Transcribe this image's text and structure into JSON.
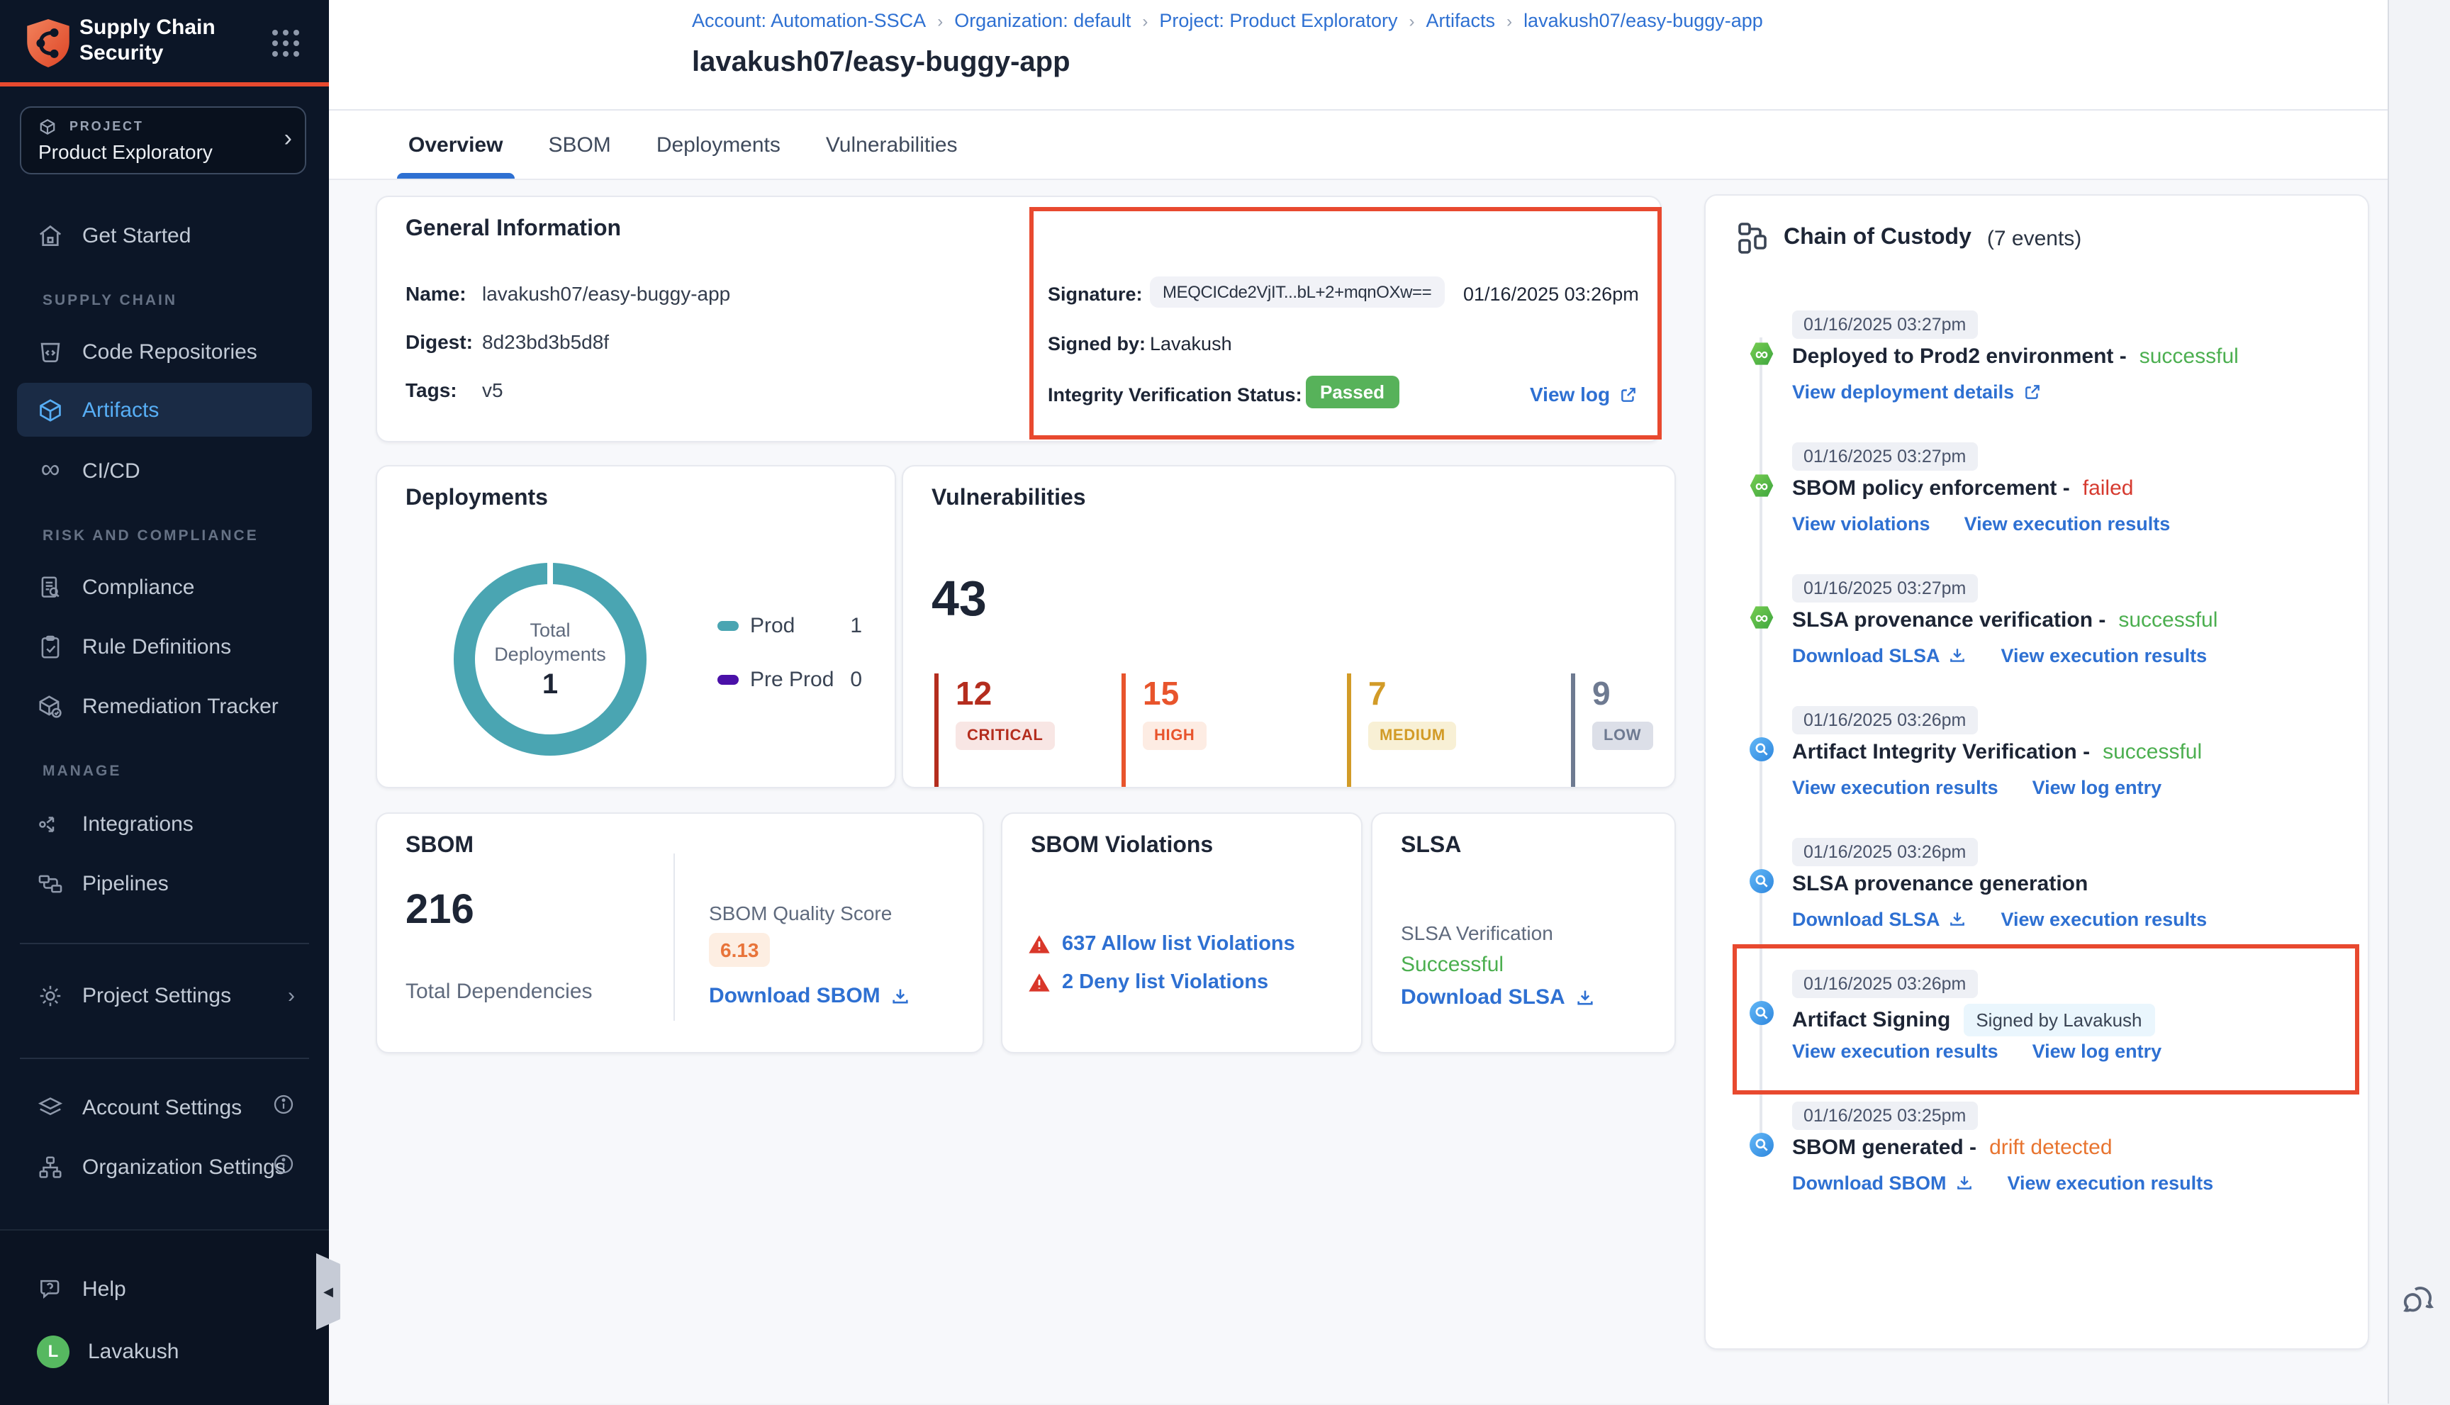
{
  "brand": {
    "line1": "Supply Chain",
    "line2": "Security"
  },
  "project_selector": {
    "label": "PROJECT",
    "value": "Product Exploratory"
  },
  "sidebar": {
    "get_started": "Get Started",
    "section_supply_chain": "SUPPLY CHAIN",
    "code_repositories": "Code Repositories",
    "artifacts": "Artifacts",
    "cicd": "CI/CD",
    "section_risk": "RISK AND COMPLIANCE",
    "compliance": "Compliance",
    "rule_definitions": "Rule Definitions",
    "remediation_tracker": "Remediation Tracker",
    "section_manage": "MANAGE",
    "integrations": "Integrations",
    "pipelines": "Pipelines",
    "project_settings": "Project Settings",
    "account_settings": "Account Settings",
    "organization_settings": "Organization Settings",
    "help": "Help",
    "user": {
      "initial": "L",
      "name": "Lavakush"
    }
  },
  "breadcrumb": [
    "Account: Automation-SSCA",
    "Organization: default",
    "Project: Product Exploratory",
    "Artifacts",
    "lavakush07/easy-buggy-app"
  ],
  "page": {
    "title": "lavakush07/easy-buggy-app"
  },
  "tabs": [
    {
      "label": "Overview",
      "active": true
    },
    {
      "label": "SBOM",
      "active": false
    },
    {
      "label": "Deployments",
      "active": false
    },
    {
      "label": "Vulnerabilities",
      "active": false
    }
  ],
  "general_info": {
    "title": "General Information",
    "fields": [
      {
        "label": "Name:",
        "value": "lavakush07/easy-buggy-app"
      },
      {
        "label": "Digest:",
        "value": "8d23bd3b5d8f"
      },
      {
        "label": "Tags:",
        "value": "v5"
      }
    ],
    "signature_label": "Signature:",
    "signature_value": "MEQCICde2VjIT...bL+2+mqnOXw==",
    "signature_time": "01/16/2025 03:26pm",
    "signed_by_label": "Signed by:",
    "signed_by": "Lavakush",
    "integrity_label": "Integrity Verification Status:",
    "integrity_status": "Passed",
    "view_log": "View log"
  },
  "deployments": {
    "title": "Deployments",
    "center_label_1": "Total",
    "center_label_2": "Deployments",
    "total": "1",
    "legend": [
      {
        "label": "Prod",
        "value": "1",
        "color": "#4aa5b2"
      },
      {
        "label": "Pre Prod",
        "value": "0",
        "color": "#4a10a8"
      }
    ]
  },
  "vulnerabilities": {
    "title": "Vulnerabilities",
    "total": "43",
    "severities": [
      {
        "count": "12",
        "label": "CRITICAL",
        "color": "#b42d1e",
        "bg": "#f8e6e4"
      },
      {
        "count": "15",
        "label": "HIGH",
        "color": "#e8542c",
        "bg": "#fdece3"
      },
      {
        "count": "7",
        "label": "MEDIUM",
        "color": "#d29b27",
        "bg": "#f8f0d5"
      },
      {
        "count": "9",
        "label": "LOW",
        "color": "#6e7a91",
        "bg": "#dcdfe8"
      }
    ]
  },
  "sbom": {
    "title": "SBOM",
    "total": "216",
    "total_label": "Total Dependencies",
    "quality_label": "SBOM Quality Score",
    "quality_score": "6.13",
    "download": "Download SBOM"
  },
  "sbom_violations": {
    "title": "SBOM Violations",
    "items": [
      {
        "label": "637 Allow list Violations"
      },
      {
        "label": "2 Deny list Violations"
      }
    ]
  },
  "slsa": {
    "title": "SLSA",
    "verification_label": "SLSA Verification",
    "status": "Successful",
    "download": "Download SLSA"
  },
  "chain": {
    "title": "Chain of Custody",
    "count": "(7 events)",
    "events": [
      {
        "time": "01/16/2025 03:27pm",
        "icon": "cicd",
        "title": "Deployed to Prod2 environment",
        "status": "successful",
        "status_color": "green",
        "links": [
          {
            "label": "View deployment details",
            "icon": "external"
          }
        ]
      },
      {
        "time": "01/16/2025 03:27pm",
        "icon": "cicd",
        "title": "SBOM policy enforcement",
        "status": "failed",
        "status_color": "red",
        "links": [
          {
            "label": "View violations"
          },
          {
            "label": "View execution results"
          }
        ]
      },
      {
        "time": "01/16/2025 03:27pm",
        "icon": "cicd",
        "title": "SLSA provenance verification",
        "status": "successful",
        "status_color": "green",
        "links": [
          {
            "label": "Download SLSA",
            "icon": "download"
          },
          {
            "label": "View execution results"
          }
        ]
      },
      {
        "time": "01/16/2025 03:26pm",
        "icon": "scan",
        "title": "Artifact Integrity Verification",
        "status": "successful",
        "status_color": "green",
        "links": [
          {
            "label": "View execution results"
          },
          {
            "label": "View log entry"
          }
        ]
      },
      {
        "time": "01/16/2025 03:26pm",
        "icon": "scan",
        "title": "SLSA provenance generation",
        "links": [
          {
            "label": "Download SLSA",
            "icon": "download"
          },
          {
            "label": "View execution results"
          }
        ]
      },
      {
        "time": "01/16/2025 03:26pm",
        "icon": "scan",
        "title": "Artifact Signing",
        "badge": "Signed by Lavakush",
        "highlighted": true,
        "links": [
          {
            "label": "View execution results"
          },
          {
            "label": "View log entry"
          }
        ]
      },
      {
        "time": "01/16/2025 03:25pm",
        "icon": "scan",
        "title": "SBOM generated",
        "status": "drift detected",
        "status_color": "orange",
        "links": [
          {
            "label": "Download SBOM",
            "icon": "download"
          },
          {
            "label": "View execution results"
          }
        ]
      }
    ]
  },
  "colors": {
    "annotation": "#e8492f",
    "link": "#2e70d2",
    "sidebar_bg": "#0c1627",
    "active_item": "#57aef5",
    "passed_badge": "#57b25a",
    "donut": "#4aa5b2",
    "success": "#4caf50",
    "failed": "#d63a2f",
    "drift": "#e8742f"
  }
}
